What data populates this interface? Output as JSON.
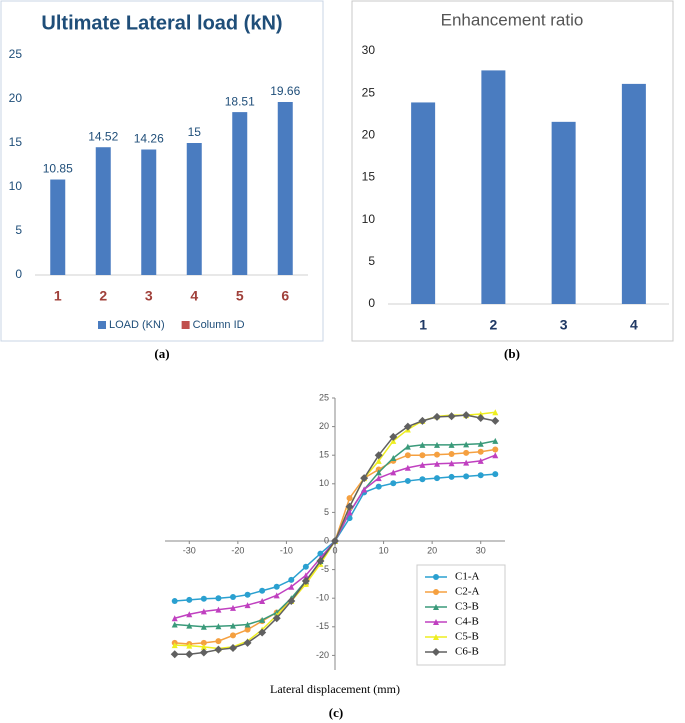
{
  "chart_data": [
    {
      "type": "bar",
      "title": "Ultimate Lateral load (kN)",
      "caption": "(a)",
      "categories": [
        "1",
        "2",
        "3",
        "4",
        "5",
        "6"
      ],
      "series": [
        {
          "name": "LOAD (KN)",
          "color": "#4a7cc0",
          "values": [
            10.85,
            14.52,
            14.26,
            15,
            18.51,
            19.66
          ]
        },
        {
          "name": "Column ID",
          "color": "#c0504d",
          "values": [
            null,
            null,
            null,
            null,
            null,
            null
          ]
        }
      ],
      "ylim": [
        0,
        25
      ],
      "yticks": [
        0,
        5,
        10,
        15,
        20,
        25
      ],
      "grid": false,
      "legend": "bottom",
      "data_labels": true
    },
    {
      "type": "bar",
      "title": "Enhancement ratio",
      "caption": "(b)",
      "categories": [
        "1",
        "2",
        "3",
        "4"
      ],
      "series": [
        {
          "color": "#4a7cc0",
          "values": [
            23.9,
            27.7,
            21.6,
            26.1
          ]
        }
      ],
      "ylim": [
        0,
        30
      ],
      "yticks": [
        0,
        5,
        10,
        15,
        20,
        25,
        30
      ],
      "grid": false
    },
    {
      "type": "line",
      "caption": "(c)",
      "x_label": "Lateral displacement (mm)",
      "x": [
        -33,
        -30,
        -27,
        -24,
        -21,
        -18,
        -15,
        -12,
        -9,
        -6,
        -3,
        0,
        3,
        6,
        9,
        12,
        15,
        18,
        21,
        24,
        27,
        30,
        33
      ],
      "series": [
        {
          "name": "C1-A",
          "color": "#2aa0d0",
          "marker": "circle",
          "values": [
            -10.5,
            -10.3,
            -10.1,
            -10,
            -9.8,
            -9.4,
            -8.7,
            -8,
            -6.8,
            -4.5,
            -2.2,
            0,
            4,
            8.5,
            9.5,
            10.1,
            10.5,
            10.8,
            11,
            11.2,
            11.3,
            11.5,
            11.7
          ]
        },
        {
          "name": "C2-A",
          "color": "#f5a040",
          "marker": "circle",
          "values": [
            -17.8,
            -18,
            -17.8,
            -17.5,
            -16.5,
            -15.5,
            -14,
            -12.5,
            -10.5,
            -7.5,
            -3.5,
            0,
            7.5,
            11,
            12.5,
            14,
            15,
            15,
            15.1,
            15.2,
            15.4,
            15.6,
            16
          ]
        },
        {
          "name": "C3-B",
          "color": "#3a9a7a",
          "marker": "triangle",
          "values": [
            -14.6,
            -14.8,
            -15,
            -14.9,
            -14.8,
            -14.6,
            -13.8,
            -12.5,
            -10,
            -7,
            -3.5,
            0,
            5,
            9,
            12,
            14.5,
            16.5,
            16.8,
            16.8,
            16.8,
            16.9,
            17,
            17.5
          ]
        },
        {
          "name": "C4-B",
          "color": "#c040c0",
          "marker": "triangle",
          "values": [
            -13.5,
            -12.8,
            -12.3,
            -12,
            -11.7,
            -11.2,
            -10.5,
            -9.5,
            -8,
            -6,
            -3,
            0,
            5,
            9,
            11,
            12,
            12.8,
            13.3,
            13.5,
            13.6,
            13.7,
            14,
            15
          ]
        },
        {
          "name": "C5-B",
          "color": "#eeee20",
          "marker": "triangle",
          "values": [
            -18.2,
            -18.3,
            -18.5,
            -18.8,
            -18.5,
            -17.5,
            -15.5,
            -13,
            -10.5,
            -7.5,
            -4,
            0,
            6,
            11,
            14,
            17.5,
            19.5,
            21,
            21.8,
            22,
            22,
            22.2,
            22.5
          ]
        },
        {
          "name": "C6-B",
          "color": "#606060",
          "marker": "diamond",
          "values": [
            -19.8,
            -19.8,
            -19.5,
            -19,
            -18.7,
            -17.8,
            -16,
            -13.5,
            -10.5,
            -7,
            -3.5,
            0,
            6,
            11,
            15,
            18.2,
            20,
            21,
            21.7,
            21.8,
            22,
            21.5,
            21
          ]
        }
      ],
      "xlim": [
        -35,
        35
      ],
      "xticks": [
        -30,
        -20,
        -10,
        0,
        10,
        20,
        30
      ],
      "ylim": [
        -25,
        25
      ],
      "yticks": [
        -20,
        -15,
        -10,
        -5,
        0,
        5,
        10,
        15,
        20,
        25
      ],
      "grid": false,
      "legend": "lower right"
    }
  ]
}
